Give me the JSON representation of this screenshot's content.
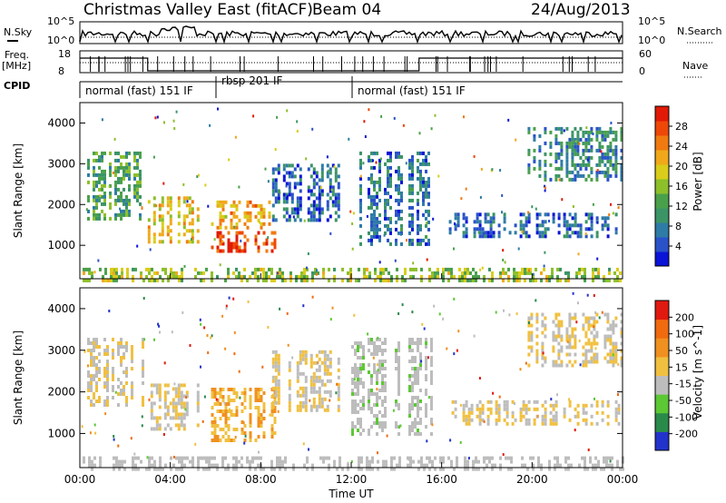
{
  "header": {
    "title": "Christmas Valley East (fitACF)",
    "beam": "Beam 04",
    "date": "24/Aug/2013"
  },
  "strips": {
    "nsky_label": "N.Sky",
    "nsky_ticks": [
      "10^5",
      "10^0"
    ],
    "nsearch_label": "N.Search",
    "nsearch_ticks": [
      "10^5",
      "10^0"
    ],
    "freq_label_1": "Freq.",
    "freq_label_2": "[MHz]",
    "freq_ticks": [
      "18",
      "8"
    ],
    "nave_label": "Nave",
    "nave_ticks": [
      "60",
      "0"
    ],
    "cpid_label": "CPID",
    "cpid_segments": [
      {
        "label": "normal (fast) 151 IF",
        "start": 0,
        "end": 6
      },
      {
        "label": "rbsp 201 IF",
        "start": 6,
        "end": 12
      },
      {
        "label": "normal (fast) 151 IF",
        "start": 12,
        "end": 24
      }
    ]
  },
  "chart_data": [
    {
      "type": "heatmap",
      "title": "Power",
      "xlabel": "Time UT",
      "ylabel": "Slant Range [km]",
      "xlim": [
        0,
        24
      ],
      "ylim": [
        180,
        4500
      ],
      "yticks": [
        "1000",
        "2000",
        "3000",
        "4000"
      ],
      "xticks": [
        "00:00",
        "04:00",
        "08:00",
        "12:00",
        "16:00",
        "20:00",
        "00:00"
      ],
      "colorbar": {
        "label": "Power [dB]",
        "ticks": [
          "4",
          "8",
          "12",
          "16",
          "20",
          "24",
          "28"
        ],
        "range": [
          0,
          32
        ],
        "colors": [
          "#0a14d6",
          "#2a52c8",
          "#2e7ba6",
          "#3b9466",
          "#4aa04a",
          "#8cbf2a",
          "#d9cc1a",
          "#f0a81a",
          "#f07a10",
          "#ee4808",
          "#e01a06"
        ]
      },
      "regions": [
        {
          "t0": 0.2,
          "t1": 2.8,
          "r0": 1650,
          "r1": 3300,
          "value": 12
        },
        {
          "t0": 3.0,
          "t1": 5.2,
          "r0": 1100,
          "r1": 2200,
          "value": 20
        },
        {
          "t0": 5.8,
          "t1": 8.6,
          "r0": 850,
          "r1": 1350,
          "value": 28
        },
        {
          "t0": 5.8,
          "t1": 8.4,
          "r0": 1400,
          "r1": 2100,
          "value": 22
        },
        {
          "t0": 8.5,
          "t1": 11.5,
          "r0": 1600,
          "r1": 3000,
          "value": 6
        },
        {
          "t0": 12.0,
          "t1": 15.5,
          "r0": 1000,
          "r1": 3300,
          "value": 7
        },
        {
          "t0": 16.2,
          "t1": 23.8,
          "r0": 1200,
          "r1": 1800,
          "value": 6
        },
        {
          "t0": 19.8,
          "t1": 23.9,
          "r0": 2600,
          "r1": 3900,
          "value": 9
        },
        {
          "t0": 0.0,
          "t1": 24.0,
          "r0": 180,
          "r1": 450,
          "value": 16
        }
      ]
    },
    {
      "type": "heatmap",
      "title": "Velocity",
      "xlabel": "Time UT",
      "ylabel": "Slant Range [km]",
      "xlim": [
        0,
        24
      ],
      "ylim": [
        180,
        4500
      ],
      "yticks": [
        "1000",
        "2000",
        "3000",
        "4000"
      ],
      "xticks": [
        "00:00",
        "04:00",
        "08:00",
        "12:00",
        "16:00",
        "20:00",
        "00:00"
      ],
      "colorbar": {
        "label": "Velocity [m s^-1]",
        "ticks": [
          "200",
          "100",
          "50",
          "15",
          "-15",
          "-50",
          "-100",
          "-200"
        ],
        "range": [
          -250,
          250
        ],
        "colors": [
          "#2233cc",
          "#2a8a4a",
          "#5cc834",
          "#bdbdbd",
          "#f0c040",
          "#f09020",
          "#f06a10",
          "#e01a10"
        ]
      },
      "regions": [
        {
          "t0": 0.2,
          "t1": 2.8,
          "r0": 1650,
          "r1": 3300,
          "value": 0
        },
        {
          "t0": 3.0,
          "t1": 5.2,
          "r0": 1100,
          "r1": 2200,
          "value": 0
        },
        {
          "t0": 5.8,
          "t1": 8.6,
          "r0": 850,
          "r1": 2100,
          "value": 60
        },
        {
          "t0": 8.5,
          "t1": 11.5,
          "r0": 1600,
          "r1": 3000,
          "value": 0
        },
        {
          "t0": 12.0,
          "t1": 15.5,
          "r0": 1000,
          "r1": 3300,
          "value": -40
        },
        {
          "t0": 16.2,
          "t1": 23.8,
          "r0": 1200,
          "r1": 1800,
          "value": 0
        },
        {
          "t0": 19.8,
          "t1": 23.9,
          "r0": 2600,
          "r1": 3900,
          "value": 0
        },
        {
          "t0": 0.0,
          "t1": 24.0,
          "r0": 180,
          "r1": 450,
          "value": -30
        }
      ]
    }
  ]
}
